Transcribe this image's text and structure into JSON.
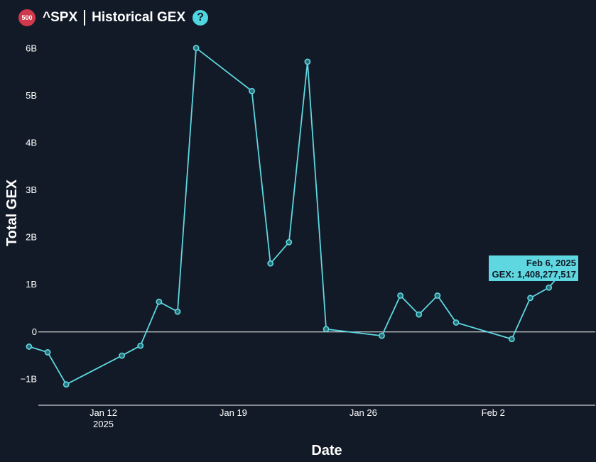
{
  "header": {
    "badge": "500",
    "symbol": "^SPX",
    "title": "Historical GEX",
    "help": "?"
  },
  "colors": {
    "background": "#111a26",
    "line": "#5ed7e1",
    "badge": "#d0384b",
    "tooltip": "#5ed7e1"
  },
  "chart_data": {
    "type": "line",
    "xlabel": "Date",
    "ylabel": "Total GEX",
    "ylim": [
      -1.55,
      6.2
    ],
    "y_ticks": [
      {
        "v": 6,
        "label": "6B"
      },
      {
        "v": 5,
        "label": "5B"
      },
      {
        "v": 4,
        "label": "4B"
      },
      {
        "v": 3,
        "label": "3B"
      },
      {
        "v": 2,
        "label": "2B"
      },
      {
        "v": 1,
        "label": "1B"
      },
      {
        "v": 0,
        "label": "0"
      },
      {
        "v": -1,
        "label": "−1B"
      }
    ],
    "x_ticks": [
      {
        "date": "2025-01-12",
        "label": "Jan 12",
        "sub": "2025"
      },
      {
        "date": "2025-01-19",
        "label": "Jan 19",
        "sub": ""
      },
      {
        "date": "2025-01-26",
        "label": "Jan 26",
        "sub": ""
      },
      {
        "date": "2025-02-02",
        "label": "Feb 2",
        "sub": ""
      }
    ],
    "xlim": [
      "2025-01-08 12:00",
      "2025-02-07 12:00"
    ],
    "series": [
      {
        "points": [
          [
            "2025-01-08",
            -0.31
          ],
          [
            "2025-01-09",
            -0.43
          ],
          [
            "2025-01-10",
            -1.11
          ],
          [
            "2025-01-13",
            -0.5
          ],
          [
            "2025-01-14",
            -0.29
          ],
          [
            "2025-01-15",
            0.64
          ],
          [
            "2025-01-16",
            0.43
          ],
          [
            "2025-01-17",
            6.01
          ],
          [
            "2025-01-20",
            5.1
          ],
          [
            "2025-01-21",
            1.45
          ],
          [
            "2025-01-22",
            1.9
          ],
          [
            "2025-01-23",
            5.72
          ],
          [
            "2025-01-24",
            0.06
          ],
          [
            "2025-01-27",
            -0.08
          ],
          [
            "2025-01-28",
            0.77
          ],
          [
            "2025-01-29",
            0.37
          ],
          [
            "2025-01-30",
            0.77
          ],
          [
            "2025-01-31",
            0.2
          ],
          [
            "2025-02-03",
            -0.15
          ],
          [
            "2025-02-04",
            0.72
          ],
          [
            "2025-02-05",
            0.94
          ],
          [
            "2025-02-06",
            1.408277517
          ]
        ]
      }
    ],
    "tooltip": {
      "date": "Feb 6, 2025",
      "value_text": "GEX: 1,408,277,517"
    }
  }
}
